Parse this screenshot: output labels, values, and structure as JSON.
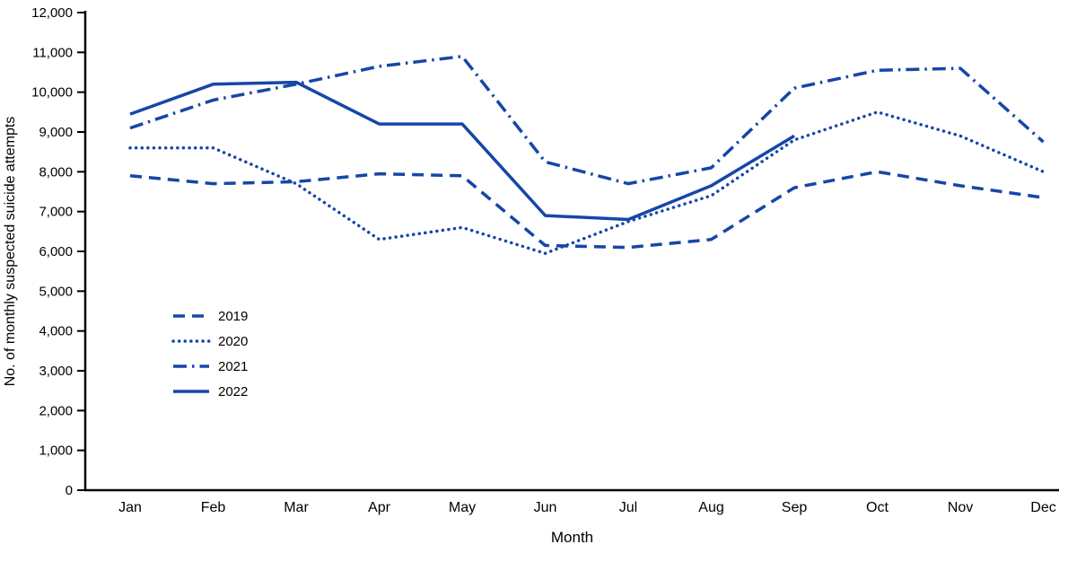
{
  "chart_data": {
    "type": "line",
    "title": "",
    "xlabel": "Month",
    "ylabel": "No. of monthly suspected suicide attempts",
    "x": [
      "Jan",
      "Feb",
      "Mar",
      "Apr",
      "May",
      "Jun",
      "Jul",
      "Aug",
      "Sep",
      "Oct",
      "Nov",
      "Dec"
    ],
    "ylim": [
      0,
      12000
    ],
    "ytick_step": 1000,
    "grid": false,
    "legend_position": "inside-left-middle",
    "line_color": "#1646A8",
    "axis_color": "#000000",
    "series": [
      {
        "name": "2019",
        "style": "dashed",
        "values": [
          7900,
          7700,
          7750,
          7950,
          7900,
          6150,
          6100,
          6300,
          7600,
          8000,
          7650,
          7350
        ]
      },
      {
        "name": "2020",
        "style": "dotted",
        "values": [
          8600,
          8600,
          7700,
          6300,
          6600,
          5950,
          6750,
          7400,
          8800,
          9500,
          8900,
          8000
        ]
      },
      {
        "name": "2021",
        "style": "dashdot",
        "values": [
          9100,
          9800,
          10200,
          10650,
          10900,
          8250,
          7700,
          8100,
          10100,
          10550,
          10600,
          8750
        ]
      },
      {
        "name": "2022",
        "style": "solid",
        "values": [
          9450,
          10200,
          10250,
          9200,
          9200,
          6900,
          6800,
          7650,
          8900,
          null,
          null,
          null
        ]
      }
    ]
  }
}
